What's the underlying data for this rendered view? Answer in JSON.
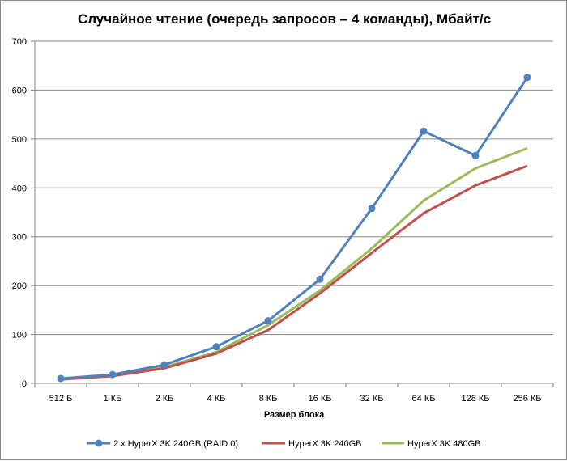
{
  "chart_data": {
    "type": "line",
    "title": "Случайное чтение (очередь запросов – 4 команды), Мбайт/с",
    "xlabel": "Размер блока",
    "ylabel": "",
    "ylim": [
      0,
      700
    ],
    "yticks": [
      0,
      100,
      200,
      300,
      400,
      500,
      600,
      700
    ],
    "grid": true,
    "legend_position": "bottom",
    "categories": [
      "512 Б",
      "1 КБ",
      "2 КБ",
      "4 КБ",
      "8 КБ",
      "16 КБ",
      "32 КБ",
      "64 КБ",
      "128 КБ",
      "256 КБ"
    ],
    "series": [
      {
        "name": "2 x HyperX 3K 240GB (RAID 0)",
        "color": "#4F81BD",
        "markers": true,
        "values": [
          10,
          18,
          38,
          75,
          128,
          213,
          358,
          516,
          466,
          626
        ]
      },
      {
        "name": "HyperX 3K 240GB",
        "color": "#C0504D",
        "markers": false,
        "values": [
          8,
          15,
          31,
          61,
          109,
          184,
          267,
          348,
          405,
          445
        ]
      },
      {
        "name": "HyperX 3K 480GB",
        "color": "#9BBB59",
        "markers": false,
        "values": [
          8,
          16,
          33,
          64,
          119,
          190,
          276,
          374,
          440,
          481
        ]
      }
    ]
  }
}
